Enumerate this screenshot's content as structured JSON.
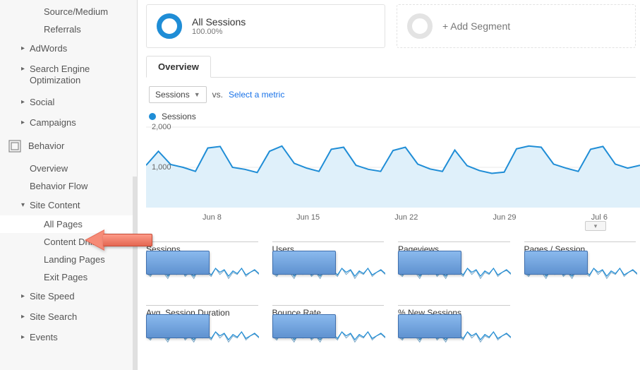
{
  "colors": {
    "accent": "#1f8dd6",
    "area_fill": "#dff0fa",
    "grid": "#e9e9e9",
    "sidebar_bg": "#f7f7f7",
    "text": "#333333",
    "link": "#1a73e8",
    "arrow_fill": "#e46752",
    "redact_fill": "#6d9dd8"
  },
  "sidebar": {
    "acquisition_children": [
      {
        "label": "Source/Medium"
      },
      {
        "label": "Referrals"
      }
    ],
    "acquisition_groups": [
      {
        "label": "AdWords"
      },
      {
        "label": "Search Engine Optimization",
        "wrap": true
      },
      {
        "label": "Social"
      },
      {
        "label": "Campaigns"
      }
    ],
    "behavior_label": "Behavior",
    "behavior_items": [
      {
        "label": "Overview"
      },
      {
        "label": "Behavior Flow"
      }
    ],
    "site_content_label": "Site Content",
    "site_content_children": [
      {
        "label": "All Pages",
        "active": true
      },
      {
        "label": "Content Drilldown"
      },
      {
        "label": "Landing Pages"
      },
      {
        "label": "Exit Pages"
      }
    ],
    "behavior_groups": [
      {
        "label": "Site Speed"
      },
      {
        "label": "Site Search"
      },
      {
        "label": "Events"
      }
    ]
  },
  "segments": {
    "primary_title": "All Sessions",
    "primary_sub": "100.00%",
    "add_label": "+ Add Segment"
  },
  "tab_label": "Overview",
  "metric_picker": {
    "selected": "Sessions",
    "vs_label": "vs.",
    "select_metric_label": "Select a metric"
  },
  "main_chart": {
    "type": "area",
    "legend_label": "Sessions",
    "ylim": [
      0,
      2000
    ],
    "ytick_step": 1000,
    "ylabels": [
      "2,000",
      "1,000"
    ],
    "grid_color": "#e9e9e9",
    "line_color": "#1f8dd6",
    "line_width": 2,
    "fill_color": "#dff0fa",
    "fill_opacity": 1,
    "x_labels": [
      "Jun 8",
      "Jun 15",
      "Jun 22",
      "Jun 29",
      "Jul 6"
    ],
    "values": [
      1050,
      1400,
      1070,
      1000,
      900,
      1480,
      1520,
      1000,
      950,
      870,
      1400,
      1530,
      1100,
      980,
      900,
      1450,
      1500,
      1050,
      950,
      900,
      1420,
      1500,
      1080,
      960,
      900,
      1430,
      1040,
      920,
      850,
      880,
      1460,
      1530,
      1500,
      1080,
      980,
      900,
      1450,
      1520,
      1080,
      980,
      1050
    ]
  },
  "summary_metrics": [
    [
      {
        "label": "Sessions"
      },
      {
        "label": "Users"
      },
      {
        "label": "Pageviews"
      },
      {
        "label": "Pages / Session"
      }
    ],
    [
      {
        "label": "Avg. Session Duration"
      },
      {
        "label": "Bounce Rate"
      },
      {
        "label": "% New Sessions"
      }
    ]
  ],
  "sparkline": {
    "line_color": "#1f8dd6",
    "under_color": "#7aa7c7",
    "values": [
      12,
      9,
      14,
      10,
      13,
      8,
      12,
      10,
      14,
      9,
      11,
      8,
      13,
      10,
      12,
      9,
      14,
      11,
      13,
      8,
      12,
      10,
      14,
      9,
      11,
      13,
      10
    ],
    "under_values": [
      7,
      5,
      8,
      6,
      7,
      4,
      8,
      6,
      9,
      5,
      7,
      4,
      8,
      6,
      7,
      5,
      9,
      6,
      8,
      4,
      7,
      6,
      9,
      5,
      7,
      8,
      6
    ]
  }
}
